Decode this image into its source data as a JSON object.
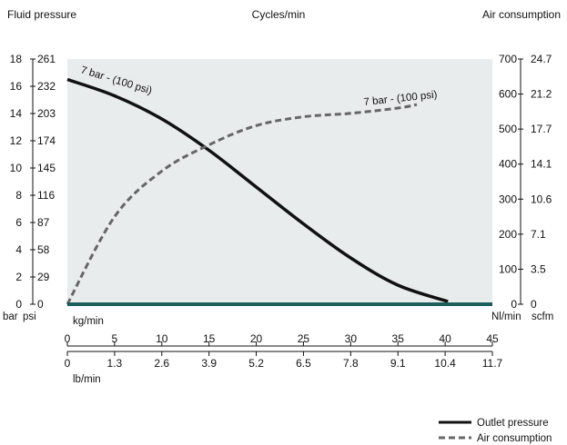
{
  "colors": {
    "plot_background": "#e8eced",
    "baseline": "#1f5c5c",
    "outlet_pressure": "#111111",
    "air_consumption": "#666666"
  },
  "chart_data": {
    "type": "line",
    "titles": {
      "left": "Fluid pressure",
      "center": "Cycles/min",
      "right": "Air consumption"
    },
    "left_axis": {
      "unit_labels": [
        "bar",
        "psi"
      ],
      "bar_ticks": [
        "0",
        "2",
        "4",
        "6",
        "8",
        "10",
        "12",
        "14",
        "16",
        "18"
      ],
      "psi_ticks": [
        "0",
        "29",
        "58",
        "87",
        "116",
        "145",
        "174",
        "203",
        "232",
        "261"
      ],
      "ylim": [
        0,
        18
      ]
    },
    "right_axis": {
      "unit_labels": [
        "Nl/min",
        "scfm"
      ],
      "nl_ticks": [
        "0",
        "100",
        "200",
        "300",
        "400",
        "500",
        "600",
        "700"
      ],
      "scfm_ticks": [
        "0",
        "3.5",
        "7.1",
        "10.6",
        "14.1",
        "17.7",
        "21.2",
        "24.7"
      ],
      "ylim": [
        0,
        700
      ]
    },
    "x_axis_kg": {
      "label": "kg/min",
      "ticks": [
        "0",
        "5",
        "10",
        "15",
        "20",
        "25",
        "30",
        "35",
        "40",
        "45"
      ],
      "xlim": [
        0,
        45
      ]
    },
    "x_axis_lb": {
      "label": "lb/min",
      "ticks": [
        "0",
        "1.3",
        "2.6",
        "3.9",
        "5.2",
        "6.5",
        "7.8",
        "9.1",
        "10.4",
        "11.7"
      ]
    },
    "annotations": [
      "7 bar - (100 psi)",
      "7 bar - (100 psi)"
    ],
    "series": [
      {
        "name": "Outlet pressure",
        "axis": "left",
        "style": "solid",
        "x": [
          0,
          5,
          10,
          15,
          20,
          25,
          30,
          35,
          40.3
        ],
        "y": [
          16.5,
          15.3,
          13.6,
          11.3,
          8.6,
          5.9,
          3.4,
          1.4,
          0.2
        ]
      },
      {
        "name": "Air consumption",
        "axis": "right",
        "style": "dashed",
        "x": [
          0,
          5,
          10,
          15,
          20,
          25,
          30,
          35,
          37
        ],
        "y": [
          0,
          250,
          380,
          455,
          510,
          535,
          545,
          560,
          570
        ]
      }
    ],
    "legend": {
      "placement": "bottom-right",
      "items": [
        "Outlet pressure",
        "Air consumption"
      ]
    },
    "grid": false
  }
}
